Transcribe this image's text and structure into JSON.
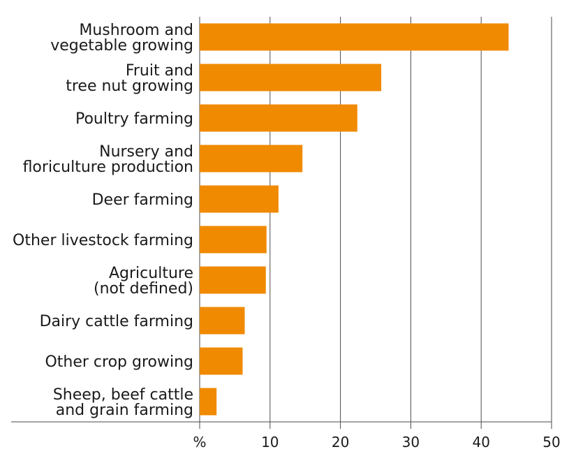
{
  "chart_data": {
    "type": "bar",
    "orientation": "horizontal",
    "categories": [
      [
        "Mushroom and",
        "vegetable growing"
      ],
      [
        "Fruit and",
        "tree nut growing"
      ],
      [
        "Poultry farming"
      ],
      [
        "Nursery and",
        "floriculture production"
      ],
      [
        "Deer farming"
      ],
      [
        "Other livestock farming"
      ],
      [
        "Agriculture",
        "(not defined)"
      ],
      [
        "Dairy cattle farming"
      ],
      [
        "Other crop growing"
      ],
      [
        "Sheep, beef cattle",
        "and grain farming"
      ]
    ],
    "values": [
      43.9,
      25.8,
      22.4,
      14.6,
      11.2,
      9.5,
      9.4,
      6.4,
      6.1,
      2.4
    ],
    "xlim": [
      0,
      50
    ],
    "x_ticks": [
      0,
      10,
      20,
      30,
      40,
      50
    ],
    "x_tick_labels": [
      "%",
      "10",
      "20",
      "30",
      "40",
      "50"
    ],
    "grid": "vertical",
    "bar_color": "#f08a00"
  }
}
